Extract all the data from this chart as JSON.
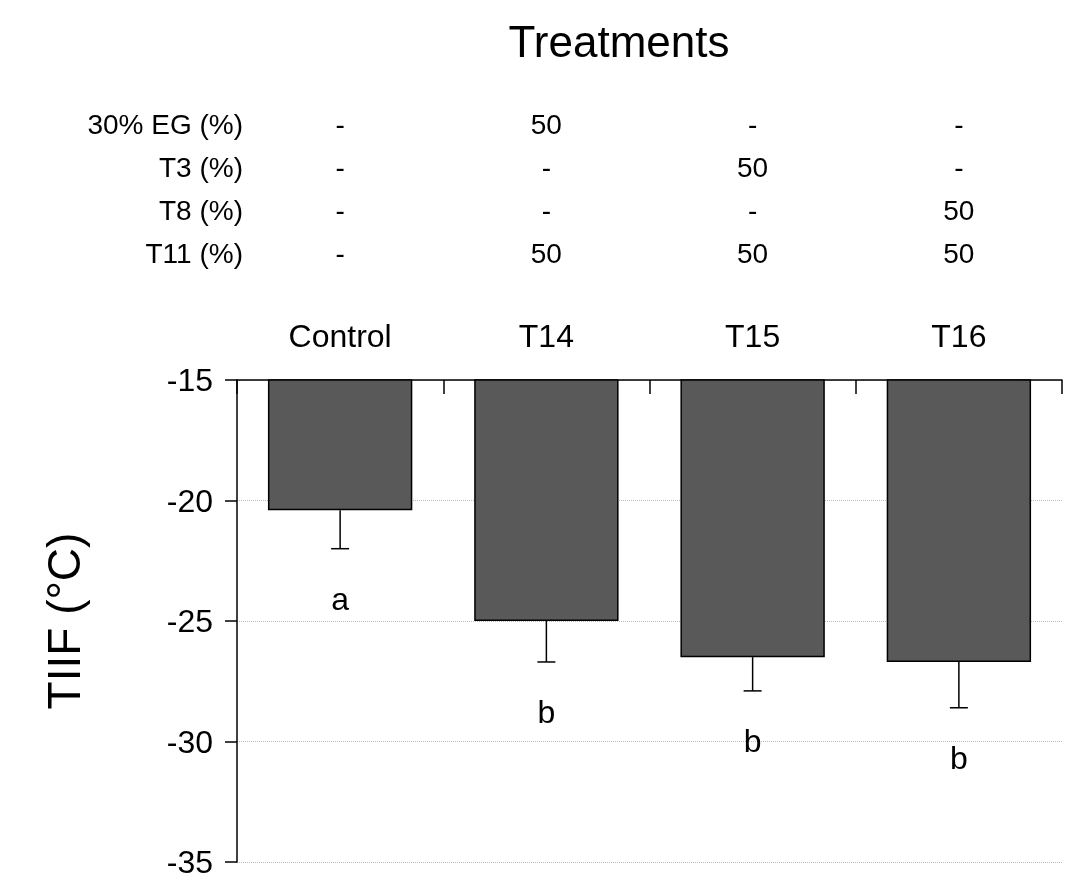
{
  "chart_data": {
    "type": "bar",
    "title": "Treatments",
    "ylabel": "TIIF (°C)",
    "categories": [
      "Control",
      "T14",
      "T15",
      "T16"
    ],
    "values": [
      -20.4,
      -25.0,
      -26.5,
      -26.7
    ],
    "errors": [
      [
        -22.0,
        -20.4
      ],
      [
        -26.7,
        -25.0
      ],
      [
        -27.9,
        -26.5
      ],
      [
        -28.6,
        -26.7
      ]
    ],
    "color": "#595959",
    "ylim": [
      -35,
      -15
    ],
    "yticks": [
      -15,
      -20,
      -25,
      -30,
      -35
    ],
    "grid": "y",
    "annotations": [
      "30% EG (%)",
      "-",
      "50",
      "-",
      "-",
      "T3 (%)",
      "-",
      "-",
      "50",
      "-",
      "T8 (%)",
      "-",
      "-",
      "-",
      "50",
      "T11 (%)",
      "-",
      "50",
      "50",
      "50",
      "a",
      "b",
      "b",
      "b"
    ]
  }
}
